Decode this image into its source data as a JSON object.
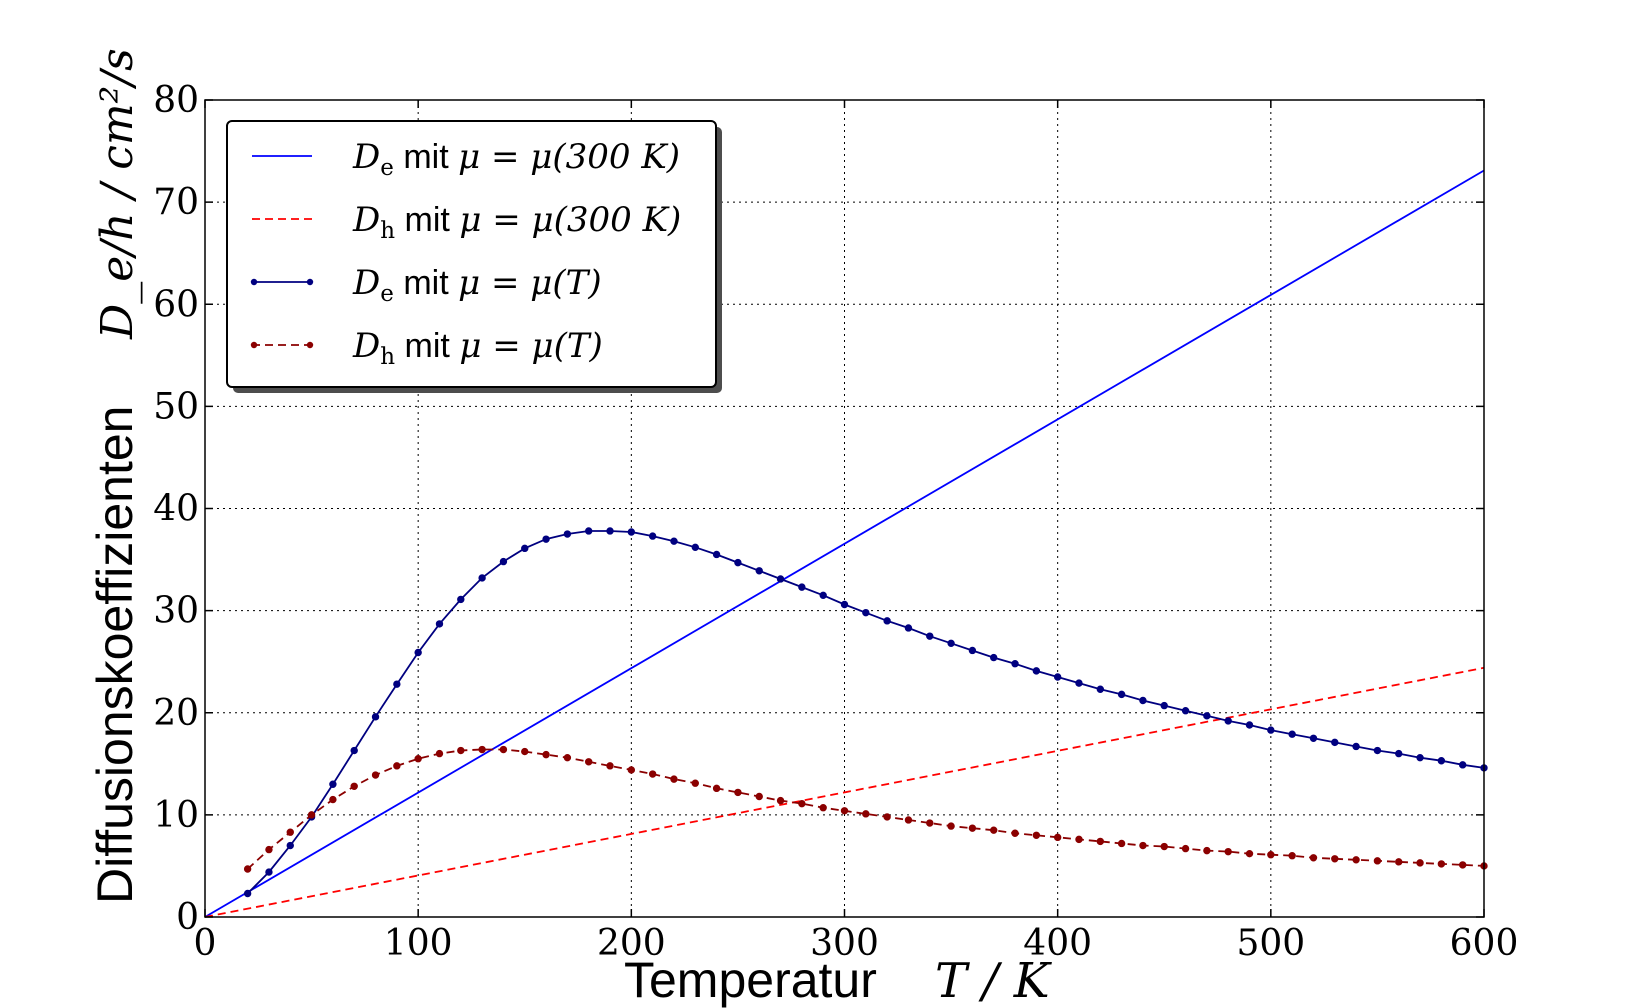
{
  "chart_data": {
    "type": "line",
    "xlabel_text": "Temperatur",
    "xlabel_math": "T / K",
    "ylabel_text": "Diffusionskoeffizienten",
    "ylabel_math": "D_e/h / cm²/s",
    "xlim": [
      0,
      600
    ],
    "ylim": [
      0,
      80
    ],
    "xticks": [
      0,
      100,
      200,
      300,
      400,
      500,
      600
    ],
    "yticks": [
      0,
      10,
      20,
      30,
      40,
      50,
      60,
      70,
      80
    ],
    "xtick_labels": [
      "0",
      "100",
      "200",
      "300",
      "400",
      "500",
      "600"
    ],
    "ytick_labels": [
      "0",
      "10",
      "20",
      "30",
      "40",
      "50",
      "60",
      "70",
      "80"
    ],
    "grid": true,
    "legend_position": "top-left",
    "series": [
      {
        "name": "D_e mit μ = μ(300 K)",
        "legend_sym": "D",
        "legend_sub": "e",
        "legend_mid": " mit ",
        "legend_expr": "μ = μ(300 K)",
        "color": "#0000ff",
        "style": "solid",
        "markers": false,
        "x": [
          0,
          600
        ],
        "y": [
          0,
          73.1
        ]
      },
      {
        "name": "D_h mit μ = μ(300 K)",
        "legend_sym": "D",
        "legend_sub": "h",
        "legend_mid": " mit ",
        "legend_expr": "μ = μ(300 K)",
        "color": "#ff0000",
        "style": "dashed",
        "markers": false,
        "x": [
          0,
          600
        ],
        "y": [
          0,
          24.4
        ]
      },
      {
        "name": "D_e mit μ = μ(T)",
        "legend_sym": "D",
        "legend_sub": "e",
        "legend_mid": " mit ",
        "legend_expr": "μ = μ(T)",
        "color": "#000080",
        "style": "solid",
        "markers": true,
        "x": [
          20,
          30,
          40,
          50,
          60,
          70,
          80,
          90,
          100,
          110,
          120,
          130,
          140,
          150,
          160,
          170,
          180,
          190,
          200,
          210,
          220,
          230,
          240,
          250,
          260,
          270,
          280,
          290,
          300,
          310,
          320,
          330,
          340,
          350,
          360,
          370,
          380,
          390,
          400,
          410,
          420,
          430,
          440,
          450,
          460,
          470,
          480,
          490,
          500,
          510,
          520,
          530,
          540,
          550,
          560,
          570,
          580,
          590,
          600
        ],
        "y": [
          2.3,
          4.4,
          7.0,
          9.8,
          13.0,
          16.3,
          19.6,
          22.8,
          25.9,
          28.7,
          31.1,
          33.2,
          34.8,
          36.1,
          37.0,
          37.5,
          37.8,
          37.8,
          37.7,
          37.3,
          36.8,
          36.2,
          35.5,
          34.7,
          33.9,
          33.1,
          32.3,
          31.5,
          30.6,
          29.8,
          29.0,
          28.3,
          27.5,
          26.8,
          26.1,
          25.4,
          24.8,
          24.1,
          23.5,
          22.9,
          22.3,
          21.8,
          21.2,
          20.7,
          20.2,
          19.7,
          19.2,
          18.8,
          18.3,
          17.9,
          17.5,
          17.1,
          16.7,
          16.3,
          16.0,
          15.6,
          15.3,
          14.9,
          14.6
        ]
      },
      {
        "name": "D_h mit μ = μ(T)",
        "legend_sym": "D",
        "legend_sub": "h",
        "legend_mid": " mit ",
        "legend_expr": "μ = μ(T)",
        "color": "#8b0000",
        "style": "dashed",
        "markers": true,
        "x": [
          20,
          30,
          40,
          50,
          60,
          70,
          80,
          90,
          100,
          110,
          120,
          130,
          140,
          150,
          160,
          170,
          180,
          190,
          200,
          210,
          220,
          230,
          240,
          250,
          260,
          270,
          280,
          290,
          300,
          310,
          320,
          330,
          340,
          350,
          360,
          370,
          380,
          390,
          400,
          410,
          420,
          430,
          440,
          450,
          460,
          470,
          480,
          490,
          500,
          510,
          520,
          530,
          540,
          550,
          560,
          570,
          580,
          590,
          600
        ],
        "y": [
          4.7,
          6.6,
          8.3,
          10.0,
          11.5,
          12.8,
          13.9,
          14.8,
          15.5,
          16.0,
          16.3,
          16.4,
          16.4,
          16.2,
          15.9,
          15.6,
          15.2,
          14.8,
          14.4,
          14.0,
          13.5,
          13.1,
          12.6,
          12.2,
          11.8,
          11.4,
          11.1,
          10.7,
          10.4,
          10.1,
          9.8,
          9.5,
          9.2,
          8.9,
          8.7,
          8.5,
          8.2,
          8.0,
          7.8,
          7.6,
          7.4,
          7.2,
          7.0,
          6.9,
          6.7,
          6.5,
          6.4,
          6.2,
          6.1,
          6.0,
          5.8,
          5.7,
          5.6,
          5.5,
          5.4,
          5.3,
          5.2,
          5.1,
          5.0
        ]
      }
    ]
  }
}
